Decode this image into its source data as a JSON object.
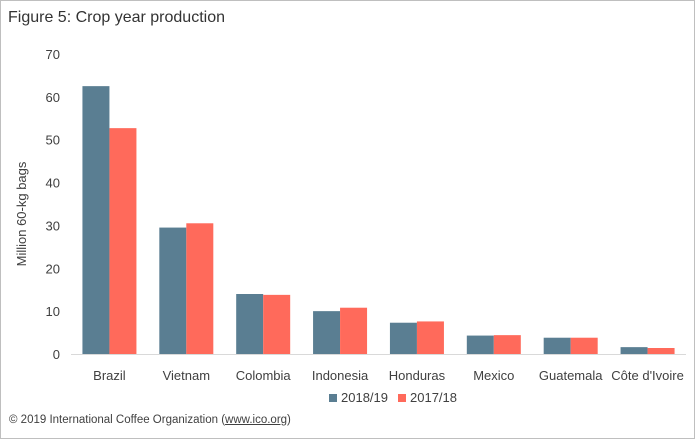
{
  "figure": {
    "title": "Figure 5: Crop year production",
    "copyright_prefix": "© 2019 International Coffee Organization (",
    "copyright_link": "www.ico.org",
    "copyright_suffix": ")"
  },
  "chart_data": {
    "type": "bar",
    "title": "",
    "xlabel": "",
    "ylabel": "Million 60-kg bags",
    "ylim": [
      0,
      70
    ],
    "yticks": [
      0,
      10,
      20,
      30,
      40,
      50,
      60,
      70
    ],
    "grid": false,
    "legend_position": "bottom",
    "categories": [
      "Brazil",
      "Vietnam",
      "Colombia",
      "Indonesia",
      "Honduras",
      "Mexico",
      "Guatemala",
      "Côte d'Ivoire"
    ],
    "series": [
      {
        "name": "2018/19",
        "color": "#5a7e92",
        "values": [
          62.5,
          29.5,
          14.0,
          10.0,
          7.3,
          4.3,
          3.8,
          1.6
        ]
      },
      {
        "name": "2017/18",
        "color": "#ff6a5b",
        "values": [
          52.7,
          30.5,
          13.8,
          10.8,
          7.6,
          4.4,
          3.8,
          1.4
        ]
      }
    ]
  }
}
